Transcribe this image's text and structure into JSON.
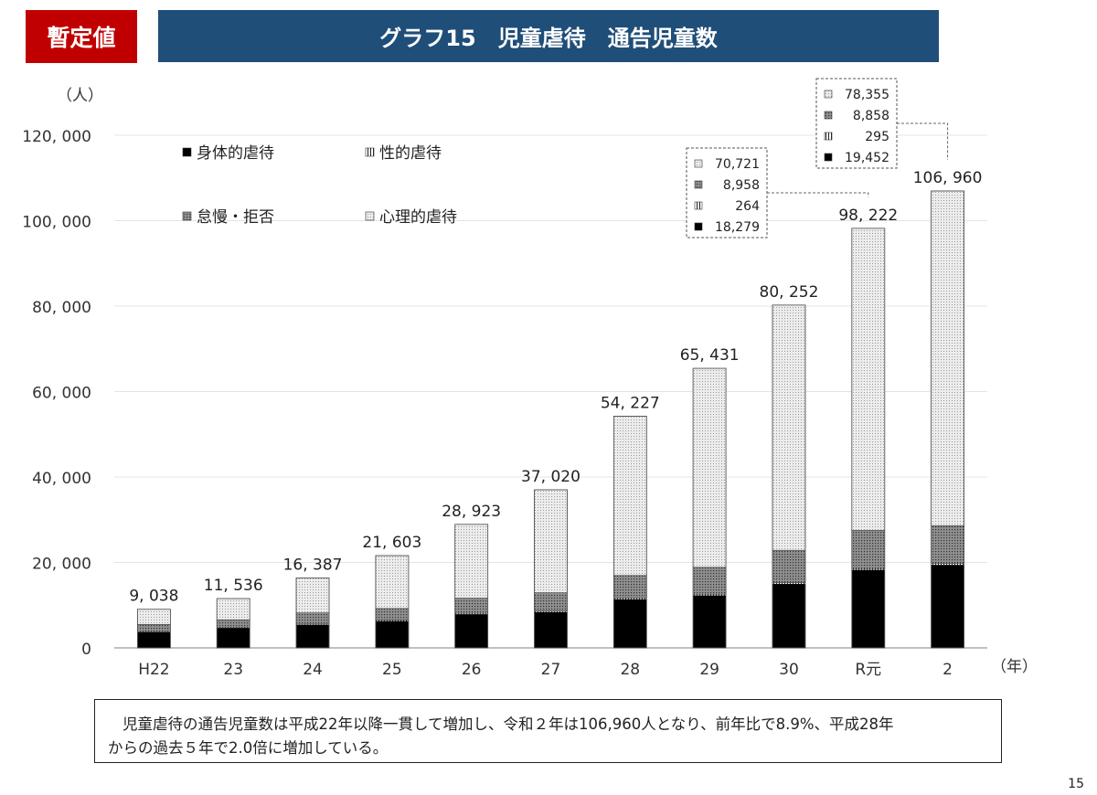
{
  "header": {
    "badge": "暫定値",
    "title": "グラフ15　児童虐待　通告児童数"
  },
  "chart_data": {
    "type": "bar",
    "stacked": true,
    "unit_label": "（人）",
    "x_unit_label": "（年）",
    "categories": [
      "H22",
      "23",
      "24",
      "25",
      "26",
      "27",
      "28",
      "29",
      "30",
      "R元",
      "2"
    ],
    "totals": [
      9038,
      11536,
      16387,
      21603,
      28923,
      37020,
      54227,
      65431,
      80252,
      98222,
      106960
    ],
    "total_labels": [
      "9, 038",
      "11, 536",
      "16, 387",
      "21, 603",
      "28, 923",
      "37, 020",
      "54, 227",
      "65, 431",
      "80, 252",
      "98, 222",
      "106, 960"
    ],
    "series": [
      {
        "name": "身体的虐待",
        "pattern": "solid-black",
        "values": [
          3700,
          4700,
          5400,
          6300,
          7900,
          8400,
          11400,
          12300,
          15000,
          18279,
          19452
        ]
      },
      {
        "name": "性的虐待",
        "pattern": "vertical-lines",
        "values": [
          100,
          130,
          150,
          170,
          190,
          200,
          250,
          260,
          250,
          264,
          295
        ]
      },
      {
        "name": "怠慢・拒否",
        "pattern": "dark-dots",
        "values": [
          1700,
          1750,
          2650,
          2750,
          3550,
          4300,
          5300,
          6300,
          7600,
          8958,
          8858
        ]
      },
      {
        "name": "心理的虐待",
        "pattern": "light-dots",
        "values": [
          3538,
          4956,
          8187,
          12383,
          17283,
          24120,
          37277,
          46571,
          57402,
          70721,
          78355
        ]
      }
    ],
    "legend": [
      "身体的虐待",
      "性的虐待",
      "怠慢・拒否",
      "心理的虐待"
    ],
    "yticks": [
      "0",
      "20, 000",
      "40, 000",
      "60, 000",
      "80, 000",
      "100, 000",
      "120, 000"
    ],
    "ylim": [
      0,
      120000
    ],
    "callouts": [
      {
        "category": "R元",
        "entries": [
          "70,721",
          "8,958",
          "264",
          "18,279"
        ]
      },
      {
        "category": "2",
        "entries": [
          "78,355",
          "8,858",
          "295",
          "19,452"
        ]
      }
    ]
  },
  "summary": {
    "line1": "児童虐待の通告児童数は平成22年以降一貫して増加し、令和２年は106,960人となり、前年比で8.9%、平成28年",
    "line2": "からの過去５年で2.0倍に増加している。"
  },
  "page_number": "15"
}
